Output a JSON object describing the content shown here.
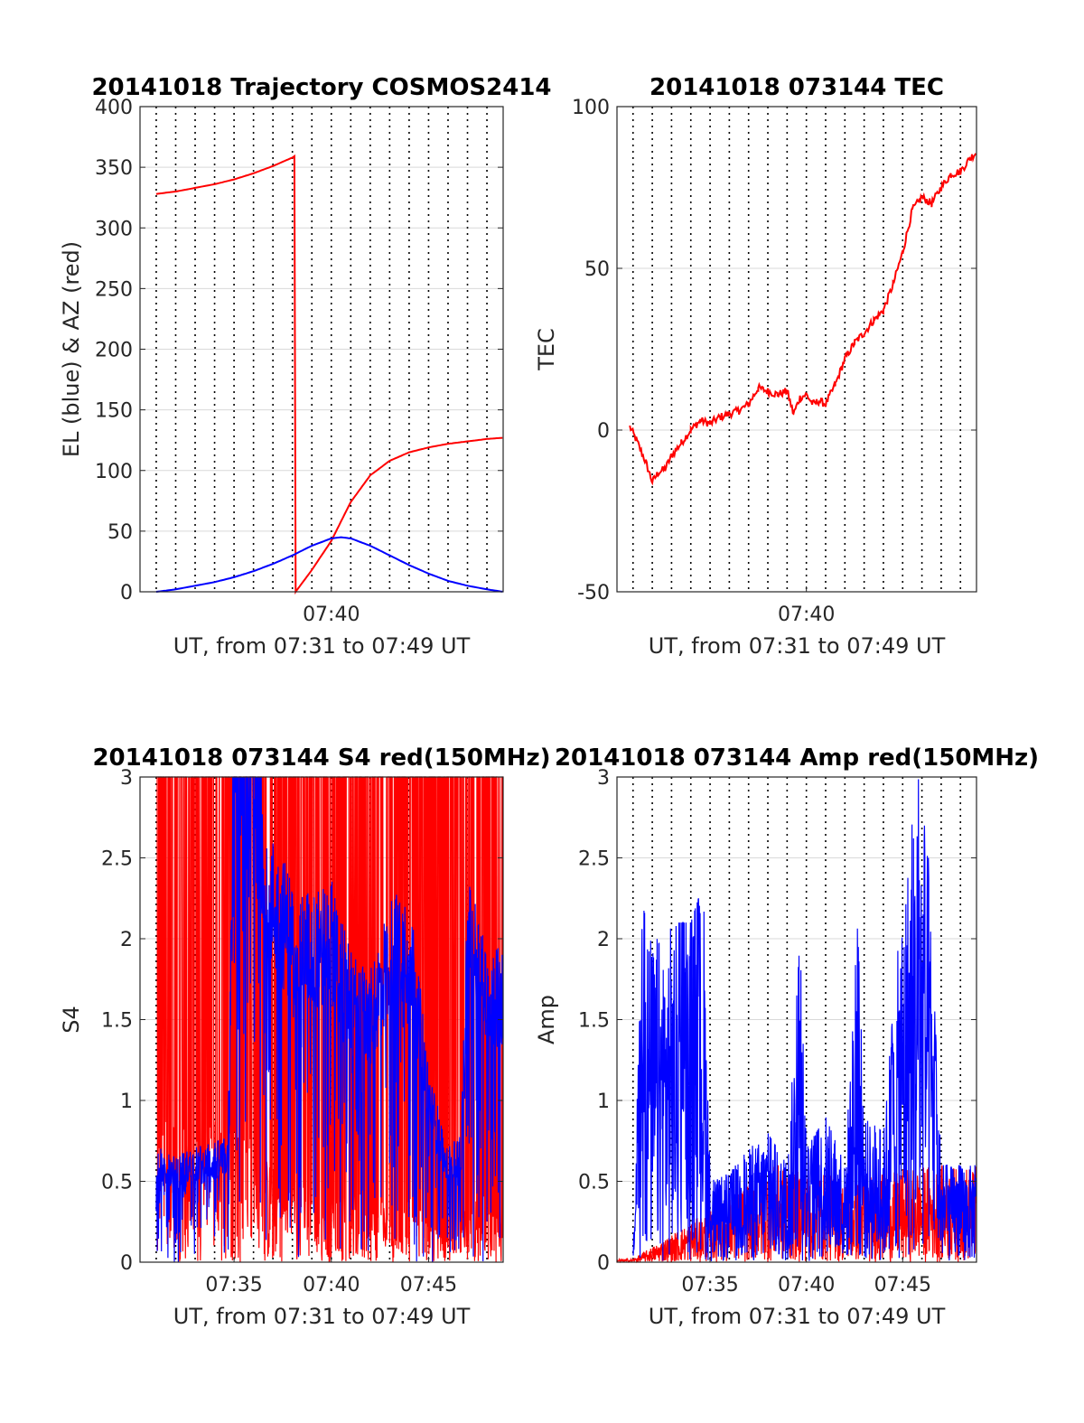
{
  "chart_data": [
    {
      "type": "line",
      "title": "20141018 Trajectory COSMOS2414",
      "xlabel": "UT, from 07:31 to 07:49 UT",
      "ylabel": "EL (blue) & AZ (red)",
      "xlim": [
        "07:30:10",
        "07:48:50"
      ],
      "ylim": [
        0,
        400
      ],
      "yticks": [
        0,
        50,
        100,
        150,
        200,
        250,
        300,
        350,
        400
      ],
      "xticks": [
        "07:40"
      ],
      "grid": "dotted vertical every minute, light horizontal",
      "series": [
        {
          "color": "#ff0000",
          "x": [
            "07:31:00",
            "07:32:00",
            "07:33:00",
            "07:34:00",
            "07:35:00",
            "07:36:00",
            "07:37:00",
            "07:38:00",
            "07:38:10",
            "07:38:10",
            "07:39:00",
            "07:39:30",
            "07:40:00",
            "07:40:30",
            "07:41:00",
            "07:42:00",
            "07:43:00",
            "07:44:00",
            "07:45:00",
            "07:46:00",
            "07:47:00",
            "07:48:00",
            "07:48:50"
          ],
          "y": [
            328,
            330,
            333,
            336,
            340,
            345,
            351,
            358,
            360,
            0,
            18,
            30,
            42,
            58,
            74,
            96,
            108,
            115,
            119,
            122,
            124,
            126,
            127
          ]
        },
        {
          "color": "#0000ff",
          "x": [
            "07:31:00",
            "07:32:00",
            "07:33:00",
            "07:34:00",
            "07:35:00",
            "07:36:00",
            "07:37:00",
            "07:38:00",
            "07:39:00",
            "07:40:00",
            "07:40:30",
            "07:41:00",
            "07:42:00",
            "07:43:00",
            "07:44:00",
            "07:45:00",
            "07:46:00",
            "07:47:00",
            "07:48:00",
            "07:48:50"
          ],
          "y": [
            0,
            2,
            5,
            8,
            12,
            17,
            23,
            30,
            38,
            44,
            45,
            44,
            38,
            30,
            22,
            15,
            9,
            5,
            2,
            0
          ]
        }
      ]
    },
    {
      "type": "line",
      "title": "20141018 073144 TEC",
      "xlabel": "UT, from 07:31 to 07:49 UT",
      "ylabel": "TEC",
      "xlim": [
        "07:30:10",
        "07:48:50"
      ],
      "ylim": [
        -50,
        100
      ],
      "yticks": [
        -50,
        0,
        50,
        100
      ],
      "xticks": [
        "07:40"
      ],
      "grid": "dotted vertical every minute, light horizontal",
      "series": [
        {
          "color": "#ff0000",
          "x": [
            "07:30:50",
            "07:31:10",
            "07:31:40",
            "07:32:00",
            "07:32:20",
            "07:32:40",
            "07:33:00",
            "07:33:30",
            "07:34:00",
            "07:34:30",
            "07:35:00",
            "07:35:30",
            "07:36:00",
            "07:36:30",
            "07:37:00",
            "07:37:30",
            "07:38:00",
            "07:38:30",
            "07:39:00",
            "07:39:20",
            "07:39:40",
            "07:40:00",
            "07:40:20",
            "07:40:40",
            "07:41:00",
            "07:41:30",
            "07:42:00",
            "07:42:30",
            "07:43:00",
            "07:43:30",
            "07:44:00",
            "07:44:30",
            "07:45:00",
            "07:45:30",
            "07:46:00",
            "07:46:30",
            "07:47:00",
            "07:47:30",
            "07:48:00",
            "07:48:30",
            "07:48:50"
          ],
          "y": [
            1,
            -3,
            -10,
            -16,
            -13,
            -12,
            -8,
            -4,
            0,
            3,
            2,
            4,
            5,
            6,
            8,
            13,
            12,
            11,
            12,
            5,
            10,
            11,
            8,
            9,
            8,
            14,
            22,
            27,
            30,
            34,
            37,
            45,
            55,
            68,
            72,
            70,
            75,
            79,
            80,
            84,
            86
          ]
        }
      ]
    },
    {
      "type": "line",
      "title": "20141018 073144 S4 red(150MHz)",
      "xlabel": "UT, from 07:31 to 07:49 UT",
      "ylabel": "S4",
      "xlim": [
        "07:30:10",
        "07:48:50"
      ],
      "ylim": [
        0,
        3
      ],
      "yticks": [
        0,
        0.5,
        1,
        1.5,
        2,
        2.5,
        3
      ],
      "xticks": [
        "07:35",
        "07:40",
        "07:45"
      ],
      "grid": "dotted vertical every minute, light horizontal",
      "series": [
        {
          "color": "#ff0000",
          "x": [
            "07:31:00",
            "07:32:00",
            "07:33:00",
            "07:34:00",
            "07:35:00",
            "07:36:00",
            "07:37:00",
            "07:38:00",
            "07:39:00",
            "07:40:00",
            "07:41:00",
            "07:42:00",
            "07:43:00",
            "07:44:00",
            "07:45:00",
            "07:46:00",
            "07:47:00",
            "07:48:00",
            "07:48:50"
          ],
          "y": [
            3,
            3,
            3,
            3,
            3,
            2.5,
            2,
            1.8,
            1.5,
            1.4,
            1.6,
            1.3,
            1.2,
            1.4,
            0.9,
            0.6,
            1.2,
            1.4,
            1.5
          ]
        },
        {
          "color": "#0000ff",
          "x": [
            "07:31:00",
            "07:32:00",
            "07:33:00",
            "07:34:00",
            "07:34:40",
            "07:35:00",
            "07:36:00",
            "07:37:00",
            "07:38:00",
            "07:39:00",
            "07:40:00",
            "07:41:00",
            "07:42:00",
            "07:43:00",
            "07:44:00",
            "07:45:00",
            "07:46:00",
            "07:46:40",
            "07:47:00",
            "07:48:00",
            "07:48:50"
          ],
          "y": [
            0.6,
            0.55,
            0.6,
            0.62,
            0.65,
            3,
            2.7,
            2.2,
            2.0,
            1.9,
            2.0,
            1.6,
            1.5,
            1.9,
            2.0,
            1.0,
            0.6,
            0.65,
            2.0,
            1.7,
            1.6
          ]
        }
      ]
    },
    {
      "type": "line",
      "title": "20141018 073144 Amp red(150MHz)",
      "xlabel": "UT, from 07:31 to 07:49 UT",
      "ylabel": "Amp",
      "xlim": [
        "07:30:10",
        "07:48:50"
      ],
      "ylim": [
        0,
        3
      ],
      "yticks": [
        0,
        0.5,
        1,
        1.5,
        2,
        2.5,
        3
      ],
      "xticks": [
        "07:35",
        "07:40",
        "07:45"
      ],
      "grid": "dotted vertical every minute, light horizontal",
      "series": [
        {
          "color": "#ff0000",
          "x": [
            "07:30:10",
            "07:31:00",
            "07:36:00",
            "07:38:00",
            "07:40:00",
            "07:42:00",
            "07:46:00",
            "07:48:50"
          ],
          "y": [
            0.02,
            0.02,
            0.4,
            0.6,
            0.6,
            0.5,
            0.6,
            0.6
          ]
        },
        {
          "color": "#0000ff",
          "x": [
            "07:31:00",
            "07:31:30",
            "07:32:00",
            "07:33:00",
            "07:34:00",
            "07:34:40",
            "07:35:00",
            "07:36:00",
            "07:37:00",
            "07:38:00",
            "07:39:00",
            "07:39:40",
            "07:40:00",
            "07:41:00",
            "07:42:00",
            "07:42:40",
            "07:43:00",
            "07:44:00",
            "07:45:00",
            "07:45:50",
            "07:46:20",
            "07:47:00",
            "07:48:00",
            "07:48:50"
          ],
          "y": [
            0.1,
            2.2,
            2.0,
            2.1,
            2.1,
            2.35,
            0.5,
            0.55,
            0.7,
            0.8,
            0.6,
            2.0,
            0.7,
            0.9,
            0.6,
            2.1,
            0.9,
            0.8,
            2.3,
            3.0,
            2.5,
            0.6,
            0.6,
            0.6
          ]
        }
      ]
    }
  ]
}
